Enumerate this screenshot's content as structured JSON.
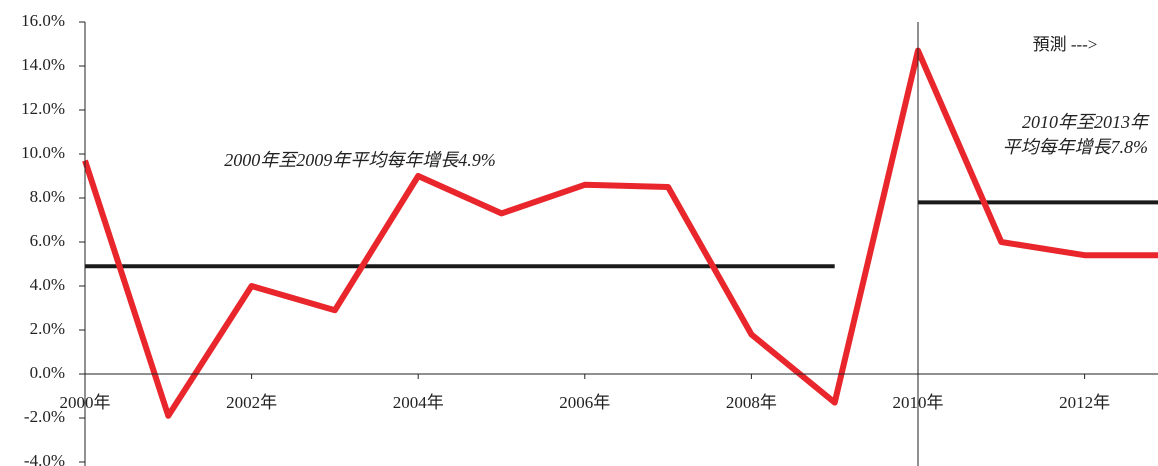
{
  "chart_data": {
    "type": "line",
    "x": [
      2000,
      2001,
      2002,
      2003,
      2004,
      2005,
      2006,
      2007,
      2008,
      2009,
      2010,
      2011,
      2012,
      2013
    ],
    "series": [
      {
        "color": "#e8262b",
        "values": [
          9.7,
          -1.9,
          4.0,
          2.9,
          9.0,
          7.3,
          8.6,
          8.5,
          1.8,
          -1.3,
          14.7,
          6.0,
          5.4,
          5.4
        ]
      }
    ],
    "xlim": [
      2000,
      2013
    ],
    "xticks": [
      {
        "value": 2000,
        "label": "2000年"
      },
      {
        "value": 2002,
        "label": "2002年"
      },
      {
        "value": 2004,
        "label": "2004年"
      },
      {
        "value": 2006,
        "label": "2006年"
      },
      {
        "value": 2008,
        "label": "2008年"
      },
      {
        "value": 2010,
        "label": "2010年"
      },
      {
        "value": 2012,
        "label": "2012年"
      }
    ],
    "ylim": [
      -4,
      16
    ],
    "yticks": [
      {
        "value": -4,
        "label": "-4.0%"
      },
      {
        "value": -2,
        "label": "-2.0%"
      },
      {
        "value": 0,
        "label": "0.0%"
      },
      {
        "value": 2,
        "label": "2.0%"
      },
      {
        "value": 4,
        "label": "4.0%"
      },
      {
        "value": 6,
        "label": "6.0%"
      },
      {
        "value": 8,
        "label": "8.0%"
      },
      {
        "value": 10,
        "label": "10.0%"
      },
      {
        "value": 12,
        "label": "12.0%"
      },
      {
        "value": 14,
        "label": "14.0%"
      },
      {
        "value": 16,
        "label": "16.0%"
      }
    ],
    "reference_lines": [
      {
        "x": [
          2000,
          2009
        ],
        "value": 4.9,
        "color": "#1a1a1a"
      },
      {
        "x": [
          2010,
          2013
        ],
        "value": 7.8,
        "color": "#1a1a1a"
      }
    ],
    "divider_x": 2010,
    "annotations": [
      "2000年至2009年平均每年增長4.9%",
      "2010年至2013年",
      "平均每年增長7.8%",
      "預測 --->"
    ]
  }
}
